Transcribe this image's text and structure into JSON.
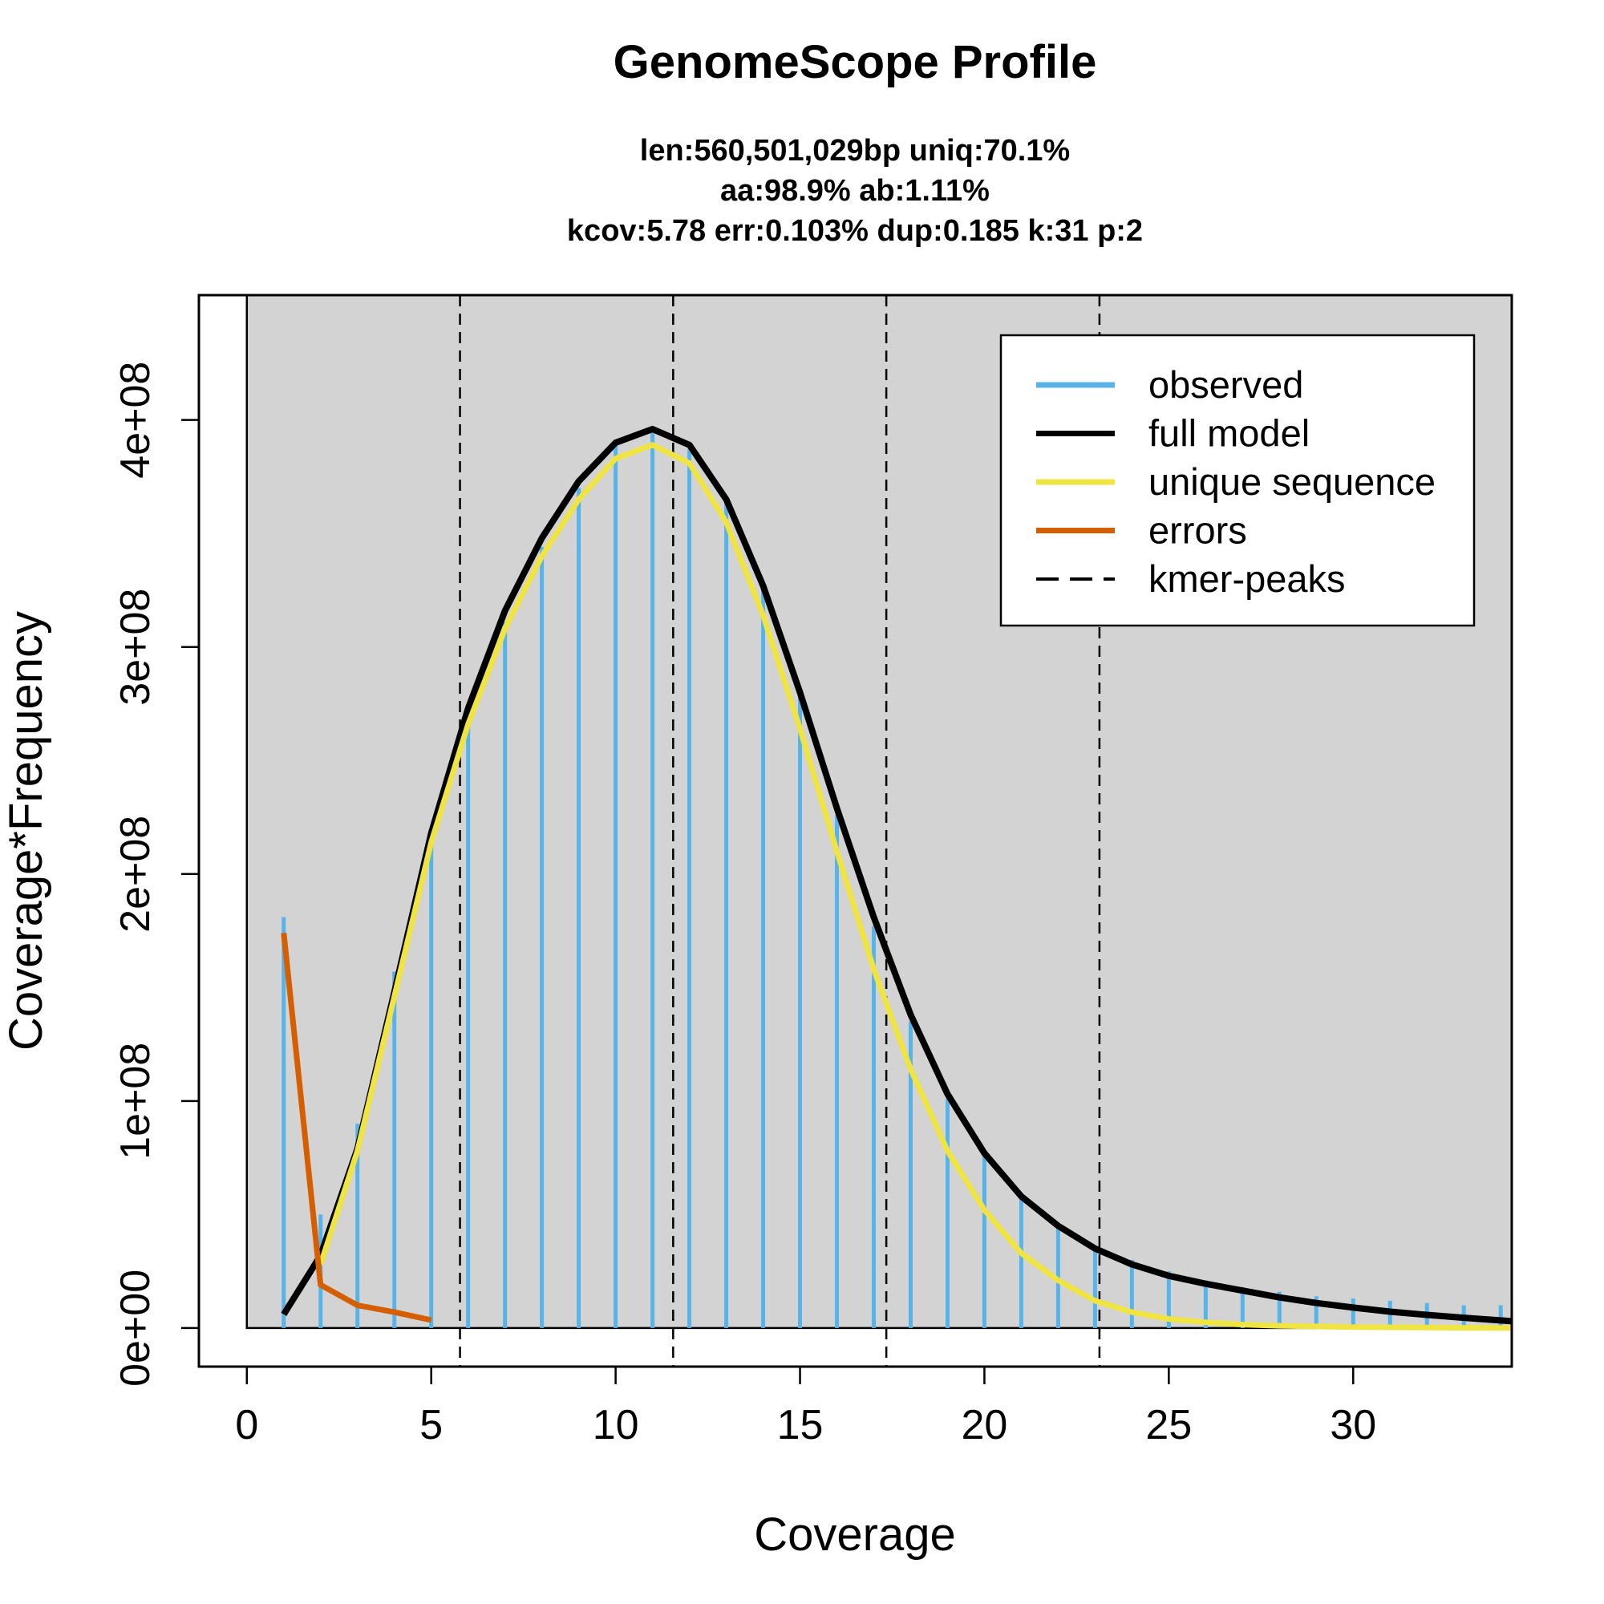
{
  "chart_data": {
    "type": "line",
    "title": "GenomeScope Profile",
    "subtitle_lines": [
      "len:560,501,029bp uniq:70.1%",
      "aa:98.9% ab:1.11%",
      "kcov:5.78 err:0.103%  dup:0.185  k:31 p:2"
    ],
    "xlabel": "Coverage",
    "ylabel": "Coverage*Frequency",
    "xlim": [
      -1.3,
      34.3
    ],
    "ylim": [
      -17000000,
      455000000
    ],
    "x_ticks": [
      0,
      5,
      10,
      15,
      20,
      25,
      30
    ],
    "x_tick_labels": [
      "0",
      "5",
      "10",
      "15",
      "20",
      "25",
      "30"
    ],
    "y_ticks": [
      0,
      100000000,
      200000000,
      300000000,
      400000000
    ],
    "y_tick_labels": [
      "0e+00",
      "1e+08",
      "2e+08",
      "3e+08",
      "4e+08"
    ],
    "kmer_peaks": [
      5.78,
      11.56,
      17.34,
      23.12
    ],
    "grid": false,
    "legend_position": "top-right",
    "colors": {
      "panel": "#d3d3d3",
      "observed": "#56b4e9",
      "full_model": "#000000",
      "unique_sequence": "#f0e442",
      "errors": "#d55e00",
      "kmer_peaks": "#000000"
    },
    "legend": [
      {
        "key": "observed",
        "label": "observed",
        "style": "solid"
      },
      {
        "key": "full_model",
        "label": "full model",
        "style": "solid"
      },
      {
        "key": "unique_sequence",
        "label": "unique sequence",
        "style": "solid"
      },
      {
        "key": "errors",
        "label": "errors",
        "style": "solid"
      },
      {
        "key": "kmer_peaks",
        "label": "kmer-peaks",
        "style": "dashed"
      }
    ],
    "observed": {
      "x": [
        1,
        2,
        3,
        4,
        5,
        6,
        7,
        8,
        9,
        10,
        11,
        12,
        13,
        14,
        15,
        16,
        17,
        18,
        19,
        20,
        21,
        22,
        23,
        24,
        25,
        26,
        27,
        28,
        29,
        30,
        31,
        32,
        33,
        34
      ],
      "y": [
        181000000,
        50000000,
        90000000,
        157000000,
        215000000,
        268000000,
        311000000,
        344000000,
        370000000,
        389000000,
        395000000,
        387000000,
        364000000,
        327000000,
        279000000,
        226000000,
        177000000,
        135000000,
        101000000,
        76000000,
        58000000,
        45000000,
        36000000,
        30000000,
        25000000,
        21000000,
        18000000,
        16000000,
        14000000,
        13000000,
        12000000,
        11000000,
        10000000,
        10000000
      ]
    },
    "full_model": {
      "x": [
        1,
        2,
        3,
        4,
        5,
        6,
        7,
        8,
        9,
        10,
        11,
        12,
        13,
        14,
        15,
        16,
        17,
        18,
        19,
        20,
        21,
        22,
        23,
        24,
        25,
        26,
        27,
        28,
        29,
        30,
        31,
        32,
        33,
        34.3
      ],
      "y": [
        6000000,
        32000000,
        79000000,
        148000000,
        218000000,
        273000000,
        316000000,
        348000000,
        373000000,
        390000000,
        396000000,
        389000000,
        365000000,
        327000000,
        280000000,
        229000000,
        181000000,
        138000000,
        103000000,
        77000000,
        58000000,
        45000000,
        35000000,
        28000000,
        23000000,
        19500000,
        16500000,
        13500000,
        11000000,
        9000000,
        7200000,
        5800000,
        4500000,
        3000000
      ]
    },
    "unique_sequence": {
      "x": [
        2,
        3,
        4,
        5,
        6,
        7,
        8,
        9,
        10,
        11,
        12,
        13,
        14,
        15,
        16,
        17,
        18,
        19,
        20,
        21,
        22,
        23,
        24,
        25,
        26,
        27,
        28,
        29,
        30,
        31,
        32,
        33,
        34.3
      ],
      "y": [
        28000000,
        78000000,
        146000000,
        214000000,
        266000000,
        308000000,
        340000000,
        365000000,
        383000000,
        389000000,
        381000000,
        355000000,
        314000000,
        264000000,
        210000000,
        158000000,
        114000000,
        78000000,
        52000000,
        33000000,
        21000000,
        12000000,
        7000000,
        4000000,
        2500000,
        1500000,
        1000000,
        700000,
        400000,
        300000,
        200000,
        100000,
        0
      ]
    },
    "errors": {
      "x": [
        1,
        2,
        3,
        4,
        5
      ],
      "y": [
        174000000,
        19000000,
        10000000,
        7000000,
        3500000
      ]
    }
  }
}
